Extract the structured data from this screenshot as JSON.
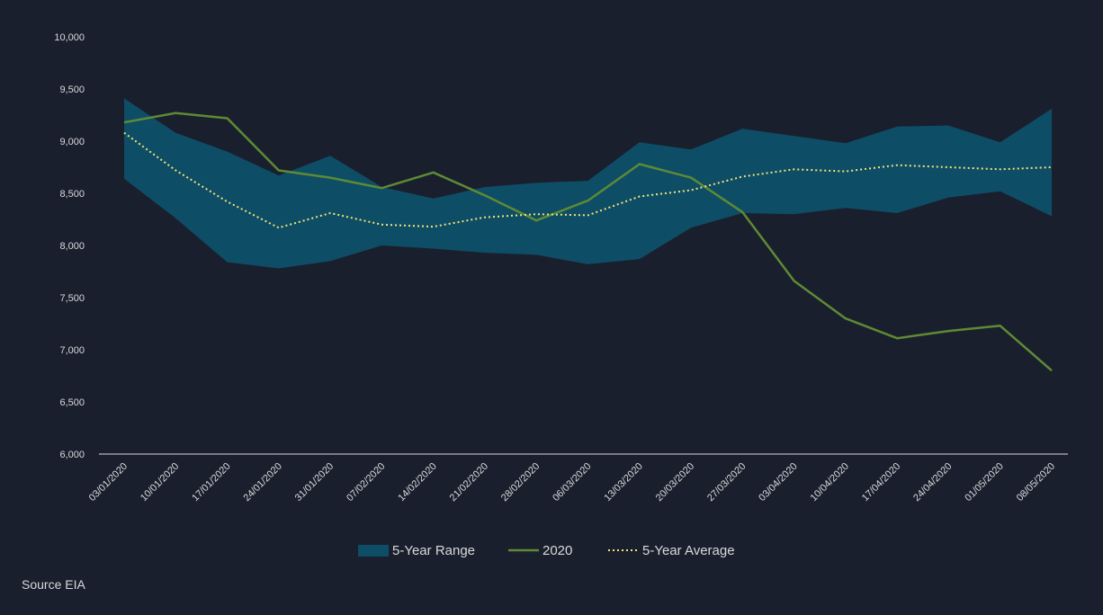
{
  "source": "Source EIA",
  "colors": {
    "background": "#1a1f2e",
    "range": "#0e4d66",
    "series2020": "#5e8a34",
    "average": "#f2e37a",
    "text": "#d9d9d9",
    "axis": "#d9d9d9"
  },
  "chart_data": {
    "type": "line",
    "title": "",
    "xlabel": "",
    "ylabel": "",
    "ylim": [
      6000,
      10000
    ],
    "yticks": [
      6000,
      6500,
      7000,
      7500,
      8000,
      8500,
      9000,
      9500,
      10000
    ],
    "ytick_labels": [
      "6,000",
      "6,500",
      "7,000",
      "7,500",
      "8,000",
      "8,500",
      "9,000",
      "9,500",
      "10,000"
    ],
    "categories": [
      "03/01/2020",
      "10/01/2020",
      "17/01/2020",
      "24/01/2020",
      "31/01/2020",
      "07/02/2020",
      "14/02/2020",
      "21/02/2020",
      "28/02/2020",
      "06/03/2020",
      "13/03/2020",
      "20/03/2020",
      "27/03/2020",
      "03/04/2020",
      "10/04/2020",
      "17/04/2020",
      "24/04/2020",
      "01/05/2020",
      "08/05/2020"
    ],
    "range": {
      "name": "5-Year Range",
      "max": [
        9410,
        9080,
        8900,
        8670,
        8860,
        8560,
        8450,
        8560,
        8600,
        8620,
        8990,
        8920,
        9120,
        9050,
        8980,
        9140,
        9150,
        8990,
        9310
      ],
      "min": [
        8640,
        8260,
        7840,
        7780,
        7850,
        8000,
        7970,
        7930,
        7910,
        7820,
        7870,
        8170,
        8310,
        8300,
        8360,
        8310,
        8460,
        8520,
        8280
      ]
    },
    "series": [
      {
        "name": "2020",
        "style": "solid",
        "values": [
          9180,
          9270,
          9220,
          8720,
          8650,
          8550,
          8700,
          8480,
          8240,
          8430,
          8780,
          8650,
          8320,
          7660,
          7300,
          7110,
          7180,
          7230,
          6800
        ]
      },
      {
        "name": "5-Year Average",
        "style": "dotted",
        "values": [
          9080,
          8720,
          8420,
          8170,
          8310,
          8200,
          8180,
          8270,
          8300,
          8290,
          8470,
          8530,
          8660,
          8730,
          8710,
          8770,
          8750,
          8730,
          8750
        ]
      }
    ],
    "legend": [
      "5-Year Range",
      "2020",
      "5-Year Average"
    ],
    "legend_position": "bottom-center",
    "grid": false
  }
}
